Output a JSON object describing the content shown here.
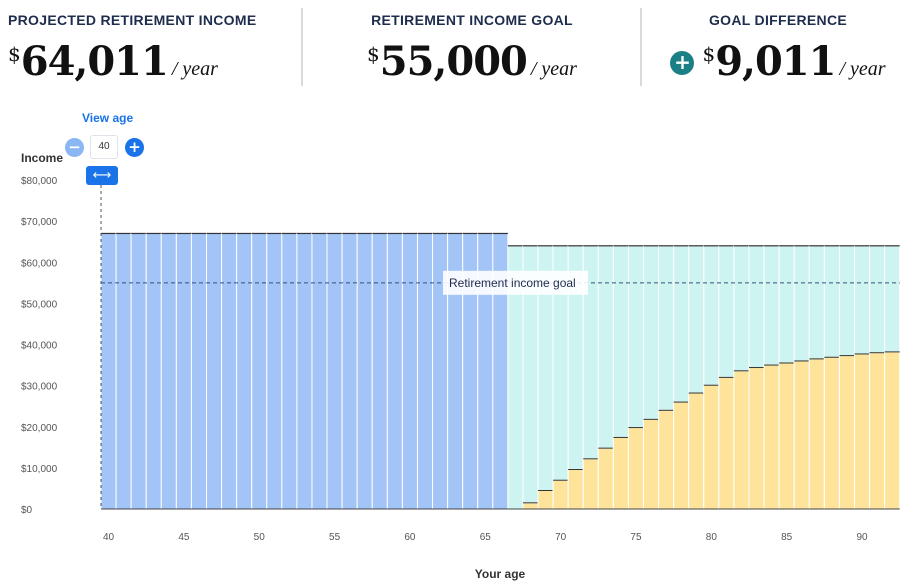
{
  "summary": [
    {
      "label": "PROJECTED RETIREMENT INCOME",
      "currency": "$",
      "value": "64,011",
      "per": "/ year"
    },
    {
      "label": "RETIREMENT INCOME GOAL",
      "currency": "$",
      "value": "55,000",
      "per": "/ year"
    },
    {
      "label": "GOAL DIFFERENCE",
      "badge": "+",
      "currency": "$",
      "value": "9,011",
      "per": "/ year"
    }
  ],
  "controls": {
    "view_age_label": "View age",
    "age_value": "40",
    "minus_symbol": "−",
    "plus_symbol": "+",
    "handle_symbol": "⟷"
  },
  "chart_data": {
    "type": "bar",
    "xlabel": "Your age",
    "ylabel": "Income",
    "x_ticks": [
      40,
      45,
      50,
      55,
      60,
      65,
      70,
      75,
      80,
      85,
      90
    ],
    "y_ticks": [
      0,
      10000,
      20000,
      30000,
      40000,
      50000,
      60000,
      70000,
      80000
    ],
    "y_tick_labels": [
      "$0",
      "$10,000",
      "$20,000",
      "$30,000",
      "$40,000",
      "$50,000",
      "$60,000",
      "$70,000",
      "$80,000"
    ],
    "ylim": [
      0,
      80000
    ],
    "goal_value": 55000,
    "goal_label": "Retirement income goal",
    "selected_age": 40,
    "pre_retirement": {
      "ages_from": 40,
      "ages_to": 66,
      "value": 67000,
      "color": "#a3c4f7"
    },
    "post_retirement": {
      "ages_from": 67,
      "ages_to": 92,
      "total": 64000,
      "total_color": "#cdf4f0",
      "portion_color": "#fde49a",
      "portion_values": [
        0,
        1500,
        4500,
        7000,
        9600,
        12200,
        14800,
        17400,
        19800,
        21800,
        24000,
        26000,
        28200,
        30100,
        32000,
        33600,
        34400,
        35000,
        35500,
        36000,
        36500,
        36900,
        37300,
        37700,
        38000,
        38200
      ]
    }
  },
  "colors": {
    "accent": "#1a73e8",
    "badge": "#1b7f86"
  }
}
